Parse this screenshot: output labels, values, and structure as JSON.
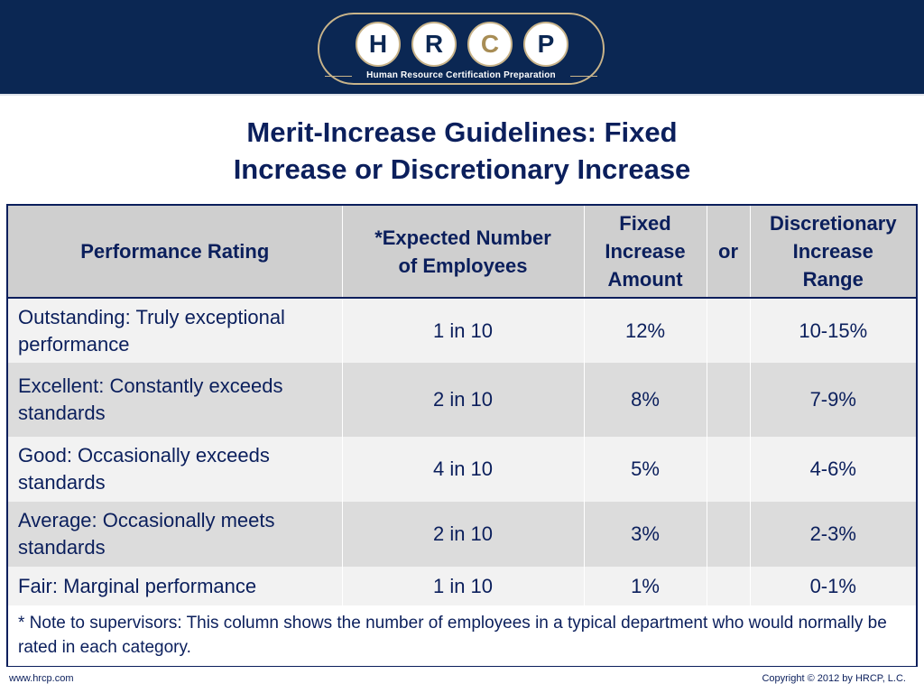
{
  "header": {
    "logo_letters": [
      "H",
      "R",
      "C",
      "P"
    ],
    "logo_tagline": "Human Resource Certification Preparation",
    "colors": {
      "banner": "#0b2753",
      "accent_gold": "#c9b48a",
      "text_navy": "#0b1f5c"
    }
  },
  "title": {
    "line1": "Merit-Increase Guidelines: Fixed",
    "line2": "Increase or Discretionary Increase"
  },
  "table": {
    "headers": {
      "rating": "Performance Rating",
      "expected_line1": "*Expected Number",
      "expected_line2": "of Employees",
      "fixed_line1": "Fixed",
      "fixed_line2": "Increase",
      "fixed_line3": "Amount",
      "or": "or",
      "disc_line1": "Discretionary",
      "disc_line2": "Increase",
      "disc_line3": "Range"
    },
    "rows": [
      {
        "rating": "Outstanding: Truly exceptional performance",
        "expected": "1 in 10",
        "fixed": "12%",
        "range": "10-15%"
      },
      {
        "rating": "Excellent: Constantly exceeds standards",
        "expected": "2 in 10",
        "fixed": "8%",
        "range": "7-9%"
      },
      {
        "rating": "Good: Occasionally exceeds standards",
        "expected": "4 in 10",
        "fixed": "5%",
        "range": "4-6%"
      },
      {
        "rating": "Average: Occasionally meets standards",
        "expected": "2 in 10",
        "fixed": "3%",
        "range": "2-3%"
      },
      {
        "rating": "Fair: Marginal performance",
        "expected": "1 in 10",
        "fixed": "1%",
        "range": "0-1%"
      }
    ],
    "note": "* Note to supervisors: This column shows the number of employees in a typical department who would normally be rated in each category."
  },
  "footer": {
    "website": "www.hrcp.com",
    "copyright": "Copyright © 2012 by HRCP, L.C."
  }
}
